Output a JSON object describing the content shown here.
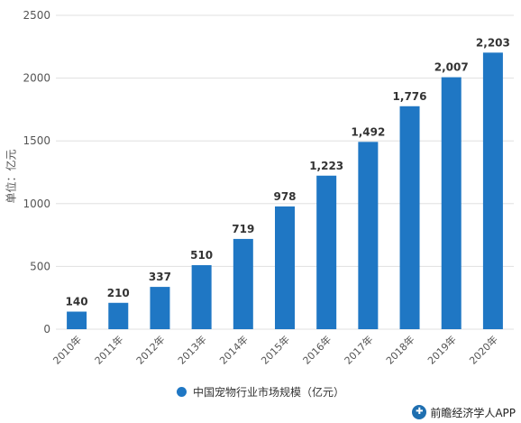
{
  "chart_data": {
    "type": "bar",
    "categories": [
      "2010年",
      "2011年",
      "2012年",
      "2013年",
      "2014年",
      "2015年",
      "2016年",
      "2017年",
      "2018年",
      "2019年",
      "2020年"
    ],
    "series": [
      {
        "name": "中国宠物行业市场规模（亿元）",
        "values": [
          140,
          210,
          337,
          510,
          719,
          978,
          1223,
          1492,
          1776,
          2007,
          2203
        ],
        "labels": [
          "140",
          "210",
          "337",
          "510",
          "719",
          "978",
          "1,223",
          "1,492",
          "1,776",
          "2,007",
          "2,203"
        ]
      }
    ],
    "ylabel": "单位：亿元",
    "ylim": [
      0,
      2500
    ],
    "yticks": [
      0,
      500,
      1000,
      1500,
      2000,
      2500
    ],
    "grid": true,
    "legend_position": "bottom",
    "colors": {
      "bar": "#1f77c4",
      "grid": "#e0e0e0",
      "axis_text": "#555555",
      "value_text": "#333333"
    }
  },
  "footer": {
    "text": "前瞻经济学人APP",
    "icon": "app-logo-icon"
  }
}
